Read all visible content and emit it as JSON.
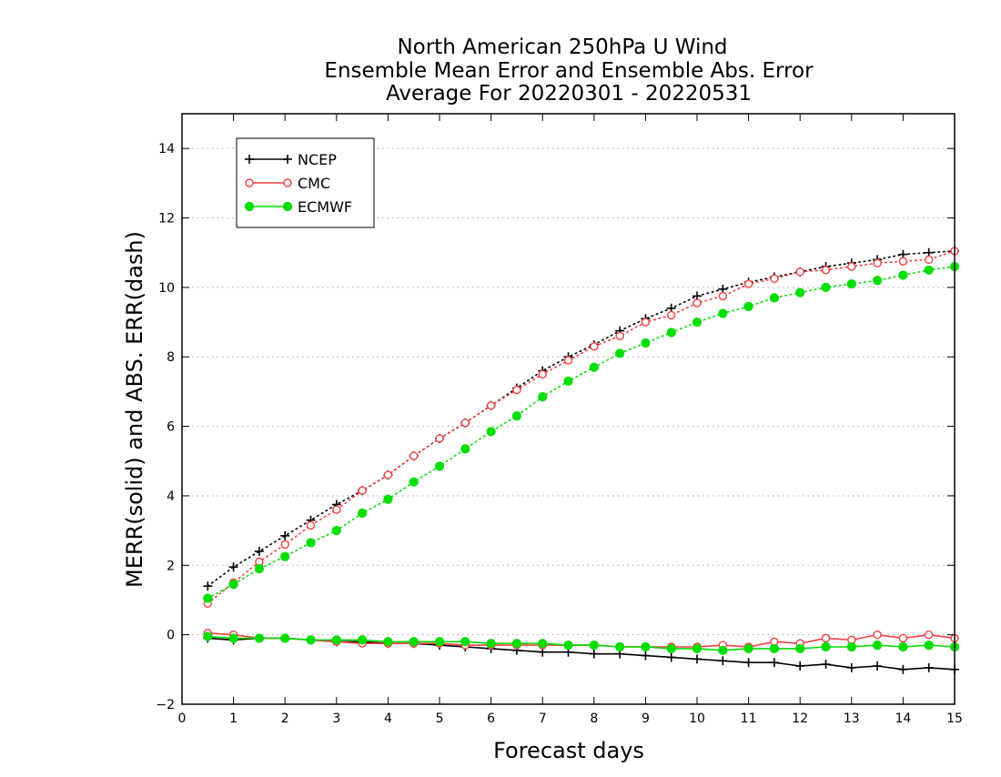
{
  "chart_data": {
    "type": "line",
    "title": [
      "North American 250hPa U Wind",
      "Ensemble Mean Error and Ensemble Abs. Error",
      "Average For 20220301 - 20220531"
    ],
    "xlabel": "Forecast days",
    "ylabel": "MERR(solid) and ABS. ERR(dash)",
    "xlim": [
      0,
      15
    ],
    "ylim": [
      -2,
      15
    ],
    "x_ticks": [
      0,
      1,
      2,
      3,
      4,
      5,
      6,
      7,
      8,
      9,
      10,
      11,
      12,
      13,
      14,
      15
    ],
    "y_ticks": [
      -2,
      0,
      2,
      4,
      6,
      8,
      10,
      12,
      14
    ],
    "grid": "horizontal dotted",
    "legend_position": "top-left",
    "x": [
      0.5,
      1.0,
      1.5,
      2.0,
      2.5,
      3.0,
      3.5,
      4.0,
      4.5,
      5.0,
      5.5,
      6.0,
      6.5,
      7.0,
      7.5,
      8.0,
      8.5,
      9.0,
      9.5,
      10.0,
      10.5,
      11.0,
      11.5,
      12.0,
      12.5,
      13.0,
      13.5,
      14.0,
      14.5,
      15.0
    ],
    "series": [
      {
        "name": "NCEP",
        "color": "#000000",
        "marker": "plus",
        "abs_error": [
          1.4,
          1.95,
          2.4,
          2.85,
          3.3,
          3.75,
          4.15,
          4.6,
          5.15,
          5.65,
          6.1,
          6.6,
          7.1,
          7.6,
          8.0,
          8.35,
          8.75,
          9.1,
          9.4,
          9.75,
          9.95,
          10.15,
          10.3,
          10.45,
          10.6,
          10.7,
          10.8,
          10.95,
          11.0,
          11.05
        ],
        "mean_error": [
          -0.1,
          -0.15,
          -0.1,
          -0.1,
          -0.15,
          -0.2,
          -0.2,
          -0.25,
          -0.25,
          -0.3,
          -0.35,
          -0.4,
          -0.45,
          -0.5,
          -0.5,
          -0.55,
          -0.55,
          -0.6,
          -0.65,
          -0.7,
          -0.75,
          -0.8,
          -0.8,
          -0.9,
          -0.85,
          -0.95,
          -0.9,
          -1.0,
          -0.95,
          -1.0
        ]
      },
      {
        "name": "CMC",
        "color": "#f04040",
        "marker": "open-circle",
        "abs_error": [
          0.9,
          1.5,
          2.1,
          2.6,
          3.15,
          3.6,
          4.15,
          4.6,
          5.15,
          5.65,
          6.1,
          6.6,
          7.05,
          7.5,
          7.9,
          8.3,
          8.6,
          9.0,
          9.2,
          9.55,
          9.75,
          10.1,
          10.25,
          10.45,
          10.5,
          10.6,
          10.7,
          10.75,
          10.8,
          11.05
        ],
        "mean_error": [
          0.05,
          0.0,
          -0.1,
          -0.1,
          -0.15,
          -0.2,
          -0.25,
          -0.25,
          -0.25,
          -0.25,
          -0.3,
          -0.3,
          -0.3,
          -0.3,
          -0.3,
          -0.3,
          -0.35,
          -0.35,
          -0.35,
          -0.35,
          -0.3,
          -0.35,
          -0.2,
          -0.25,
          -0.1,
          -0.15,
          0.0,
          -0.1,
          0.0,
          -0.1
        ]
      },
      {
        "name": "ECMWF",
        "color": "#00dd00",
        "marker": "filled-circle",
        "abs_error": [
          1.05,
          1.45,
          1.9,
          2.25,
          2.65,
          3.0,
          3.5,
          3.9,
          4.4,
          4.85,
          5.35,
          5.85,
          6.3,
          6.85,
          7.3,
          7.7,
          8.1,
          8.4,
          8.7,
          9.0,
          9.25,
          9.45,
          9.7,
          9.85,
          10.0,
          10.1,
          10.2,
          10.35,
          10.5,
          10.6
        ],
        "mean_error": [
          -0.05,
          -0.1,
          -0.1,
          -0.1,
          -0.15,
          -0.15,
          -0.15,
          -0.2,
          -0.2,
          -0.2,
          -0.2,
          -0.25,
          -0.25,
          -0.25,
          -0.3,
          -0.3,
          -0.35,
          -0.35,
          -0.4,
          -0.4,
          -0.45,
          -0.4,
          -0.4,
          -0.4,
          -0.35,
          -0.35,
          -0.3,
          -0.35,
          -0.3,
          -0.35
        ]
      }
    ]
  }
}
